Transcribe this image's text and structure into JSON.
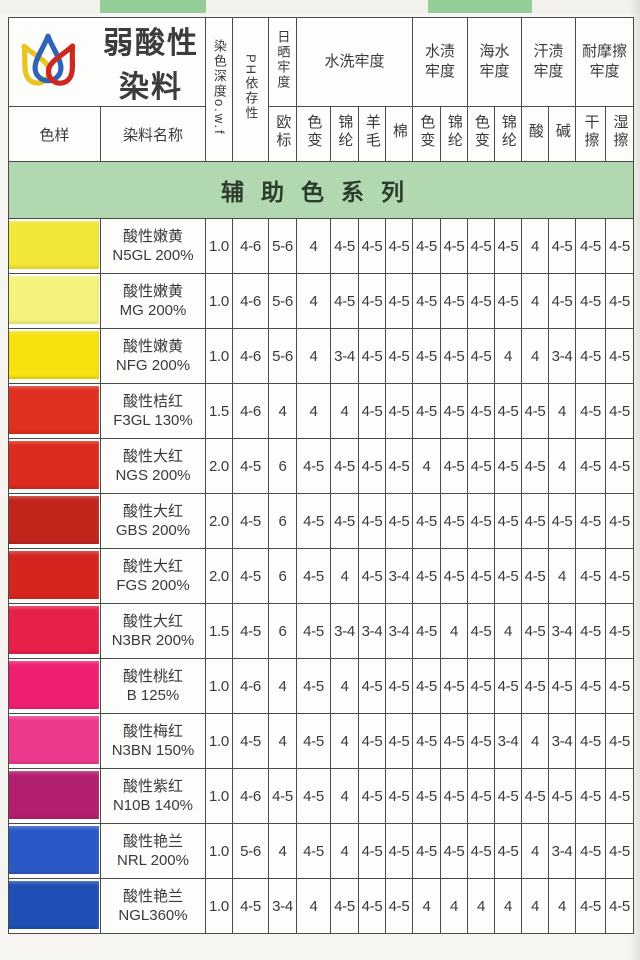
{
  "page": {
    "strip_color": "#92ce96",
    "banner_bg": "#b2d8b2"
  },
  "brand": {
    "title": "弱酸性染料",
    "logo_drop_colors": [
      "#e9c41f",
      "#2f63b8",
      "#cc2721"
    ]
  },
  "header": {
    "sample": "色样",
    "dye_name": "染料名称",
    "depth": "染色深度o.w.f",
    "ph": "PH依存性",
    "sun_group": "日晒牢度",
    "sun_sub": "欧标",
    "wash_group": "水洗牢度",
    "wash_subs": [
      "色变",
      "锦纶",
      "羊毛",
      "棉"
    ],
    "water_group": "水渍牢度",
    "water_subs": [
      "色变",
      "锦纶"
    ],
    "sea_group": "海水牢度",
    "sea_subs": [
      "色变",
      "锦纶"
    ],
    "sweat_group": "汗渍牢度",
    "sweat_subs": [
      "酸",
      "碱"
    ],
    "rub_group": "耐摩擦牢度",
    "rub_subs": [
      "干擦",
      "湿擦"
    ]
  },
  "banner": {
    "text": "辅助色系列"
  },
  "rows": [
    {
      "name_line1": "酸性嫩黄",
      "name_line2": "N5GL 200%",
      "swatch": "#f2e636",
      "values": [
        "1.0",
        "4-6",
        "5-6",
        "4",
        "4-5",
        "4-5",
        "4-5",
        "4-5",
        "4-5",
        "4-5",
        "4-5",
        "4",
        "4-5",
        "4-5",
        "4-5"
      ]
    },
    {
      "name_line1": "酸性嫩黄",
      "name_line2": "MG 200%",
      "swatch": "#f5f37d",
      "values": [
        "1.0",
        "4-6",
        "5-6",
        "4",
        "4-5",
        "4-5",
        "4-5",
        "4-5",
        "4-5",
        "4-5",
        "4-5",
        "4",
        "4-5",
        "4-5",
        "4-5"
      ]
    },
    {
      "name_line1": "酸性嫩黄",
      "name_line2": "NFG 200%",
      "swatch": "#f7e20e",
      "values": [
        "1.0",
        "4-6",
        "5-6",
        "4",
        "3-4",
        "4-5",
        "4-5",
        "4-5",
        "4-5",
        "4-5",
        "4",
        "4",
        "3-4",
        "4-5",
        "4-5"
      ]
    },
    {
      "name_line1": "酸性桔红",
      "name_line2": "F3GL 130%",
      "swatch": "#e0301f",
      "values": [
        "1.5",
        "4-6",
        "4",
        "4",
        "4",
        "4-5",
        "4-5",
        "4-5",
        "4-5",
        "4-5",
        "4-5",
        "4-5",
        "4",
        "4-5",
        "4-5"
      ]
    },
    {
      "name_line1": "酸性大红",
      "name_line2": "NGS 200%",
      "swatch": "#dd2a1e",
      "values": [
        "2.0",
        "4-5",
        "6",
        "4-5",
        "4-5",
        "4-5",
        "4-5",
        "4",
        "4-5",
        "4-5",
        "4-5",
        "4-5",
        "4",
        "4-5",
        "4-5"
      ]
    },
    {
      "name_line1": "酸性大红",
      "name_line2": "GBS 200%",
      "swatch": "#c0251c",
      "values": [
        "2.0",
        "4-5",
        "6",
        "4-5",
        "4-5",
        "4-5",
        "4-5",
        "4-5",
        "4-5",
        "4-5",
        "4-5",
        "4-5",
        "4-5",
        "4-5",
        "4-5"
      ]
    },
    {
      "name_line1": "酸性大红",
      "name_line2": "FGS 200%",
      "swatch": "#d5251e",
      "values": [
        "2.0",
        "4-5",
        "6",
        "4-5",
        "4",
        "4-5",
        "3-4",
        "4-5",
        "4-5",
        "4-5",
        "4-5",
        "4-5",
        "4",
        "4-5",
        "4-5"
      ]
    },
    {
      "name_line1": "酸性大红",
      "name_line2": "N3BR 200%",
      "swatch": "#e6204a",
      "values": [
        "1.5",
        "4-5",
        "6",
        "4-5",
        "3-4",
        "3-4",
        "3-4",
        "4-5",
        "4",
        "4-5",
        "4",
        "4-5",
        "3-4",
        "4-5",
        "4-5"
      ]
    },
    {
      "name_line1": "酸性桃红",
      "name_line2": "B 125%",
      "swatch": "#f01f73",
      "values": [
        "1.0",
        "4-6",
        "4",
        "4-5",
        "4",
        "4-5",
        "4-5",
        "4-5",
        "4-5",
        "4-5",
        "4-5",
        "4-5",
        "4-5",
        "4-5",
        "4-5"
      ]
    },
    {
      "name_line1": "酸性梅红",
      "name_line2": "N3BN 150%",
      "swatch": "#ee3a8c",
      "values": [
        "1.0",
        "4-5",
        "4",
        "4-5",
        "4",
        "4-5",
        "4-5",
        "4-5",
        "4-5",
        "4-5",
        "3-4",
        "4",
        "3-4",
        "4-5",
        "4-5"
      ]
    },
    {
      "name_line1": "酸性紫红",
      "name_line2": "N10B 140%",
      "swatch": "#b21f6e",
      "values": [
        "1.0",
        "4-6",
        "4-5",
        "4-5",
        "4",
        "4-5",
        "4-5",
        "4-5",
        "4-5",
        "4-5",
        "4-5",
        "4-5",
        "4-5",
        "4-5",
        "4-5"
      ]
    },
    {
      "name_line1": "酸性艳兰",
      "name_line2": "NRL 200%",
      "swatch": "#2b58c6",
      "values": [
        "1.0",
        "5-6",
        "4",
        "4-5",
        "4",
        "4-5",
        "4-5",
        "4-5",
        "4-5",
        "4-5",
        "4-5",
        "4",
        "3-4",
        "4-5",
        "4-5"
      ]
    },
    {
      "name_line1": "酸性艳兰",
      "name_line2": "NGL360%",
      "swatch": "#1f4fb5",
      "values": [
        "1.0",
        "4-5",
        "3-4",
        "4",
        "4-5",
        "4-5",
        "4-5",
        "4",
        "4",
        "4",
        "4",
        "4",
        "4",
        "4-5",
        "4-5"
      ]
    }
  ]
}
